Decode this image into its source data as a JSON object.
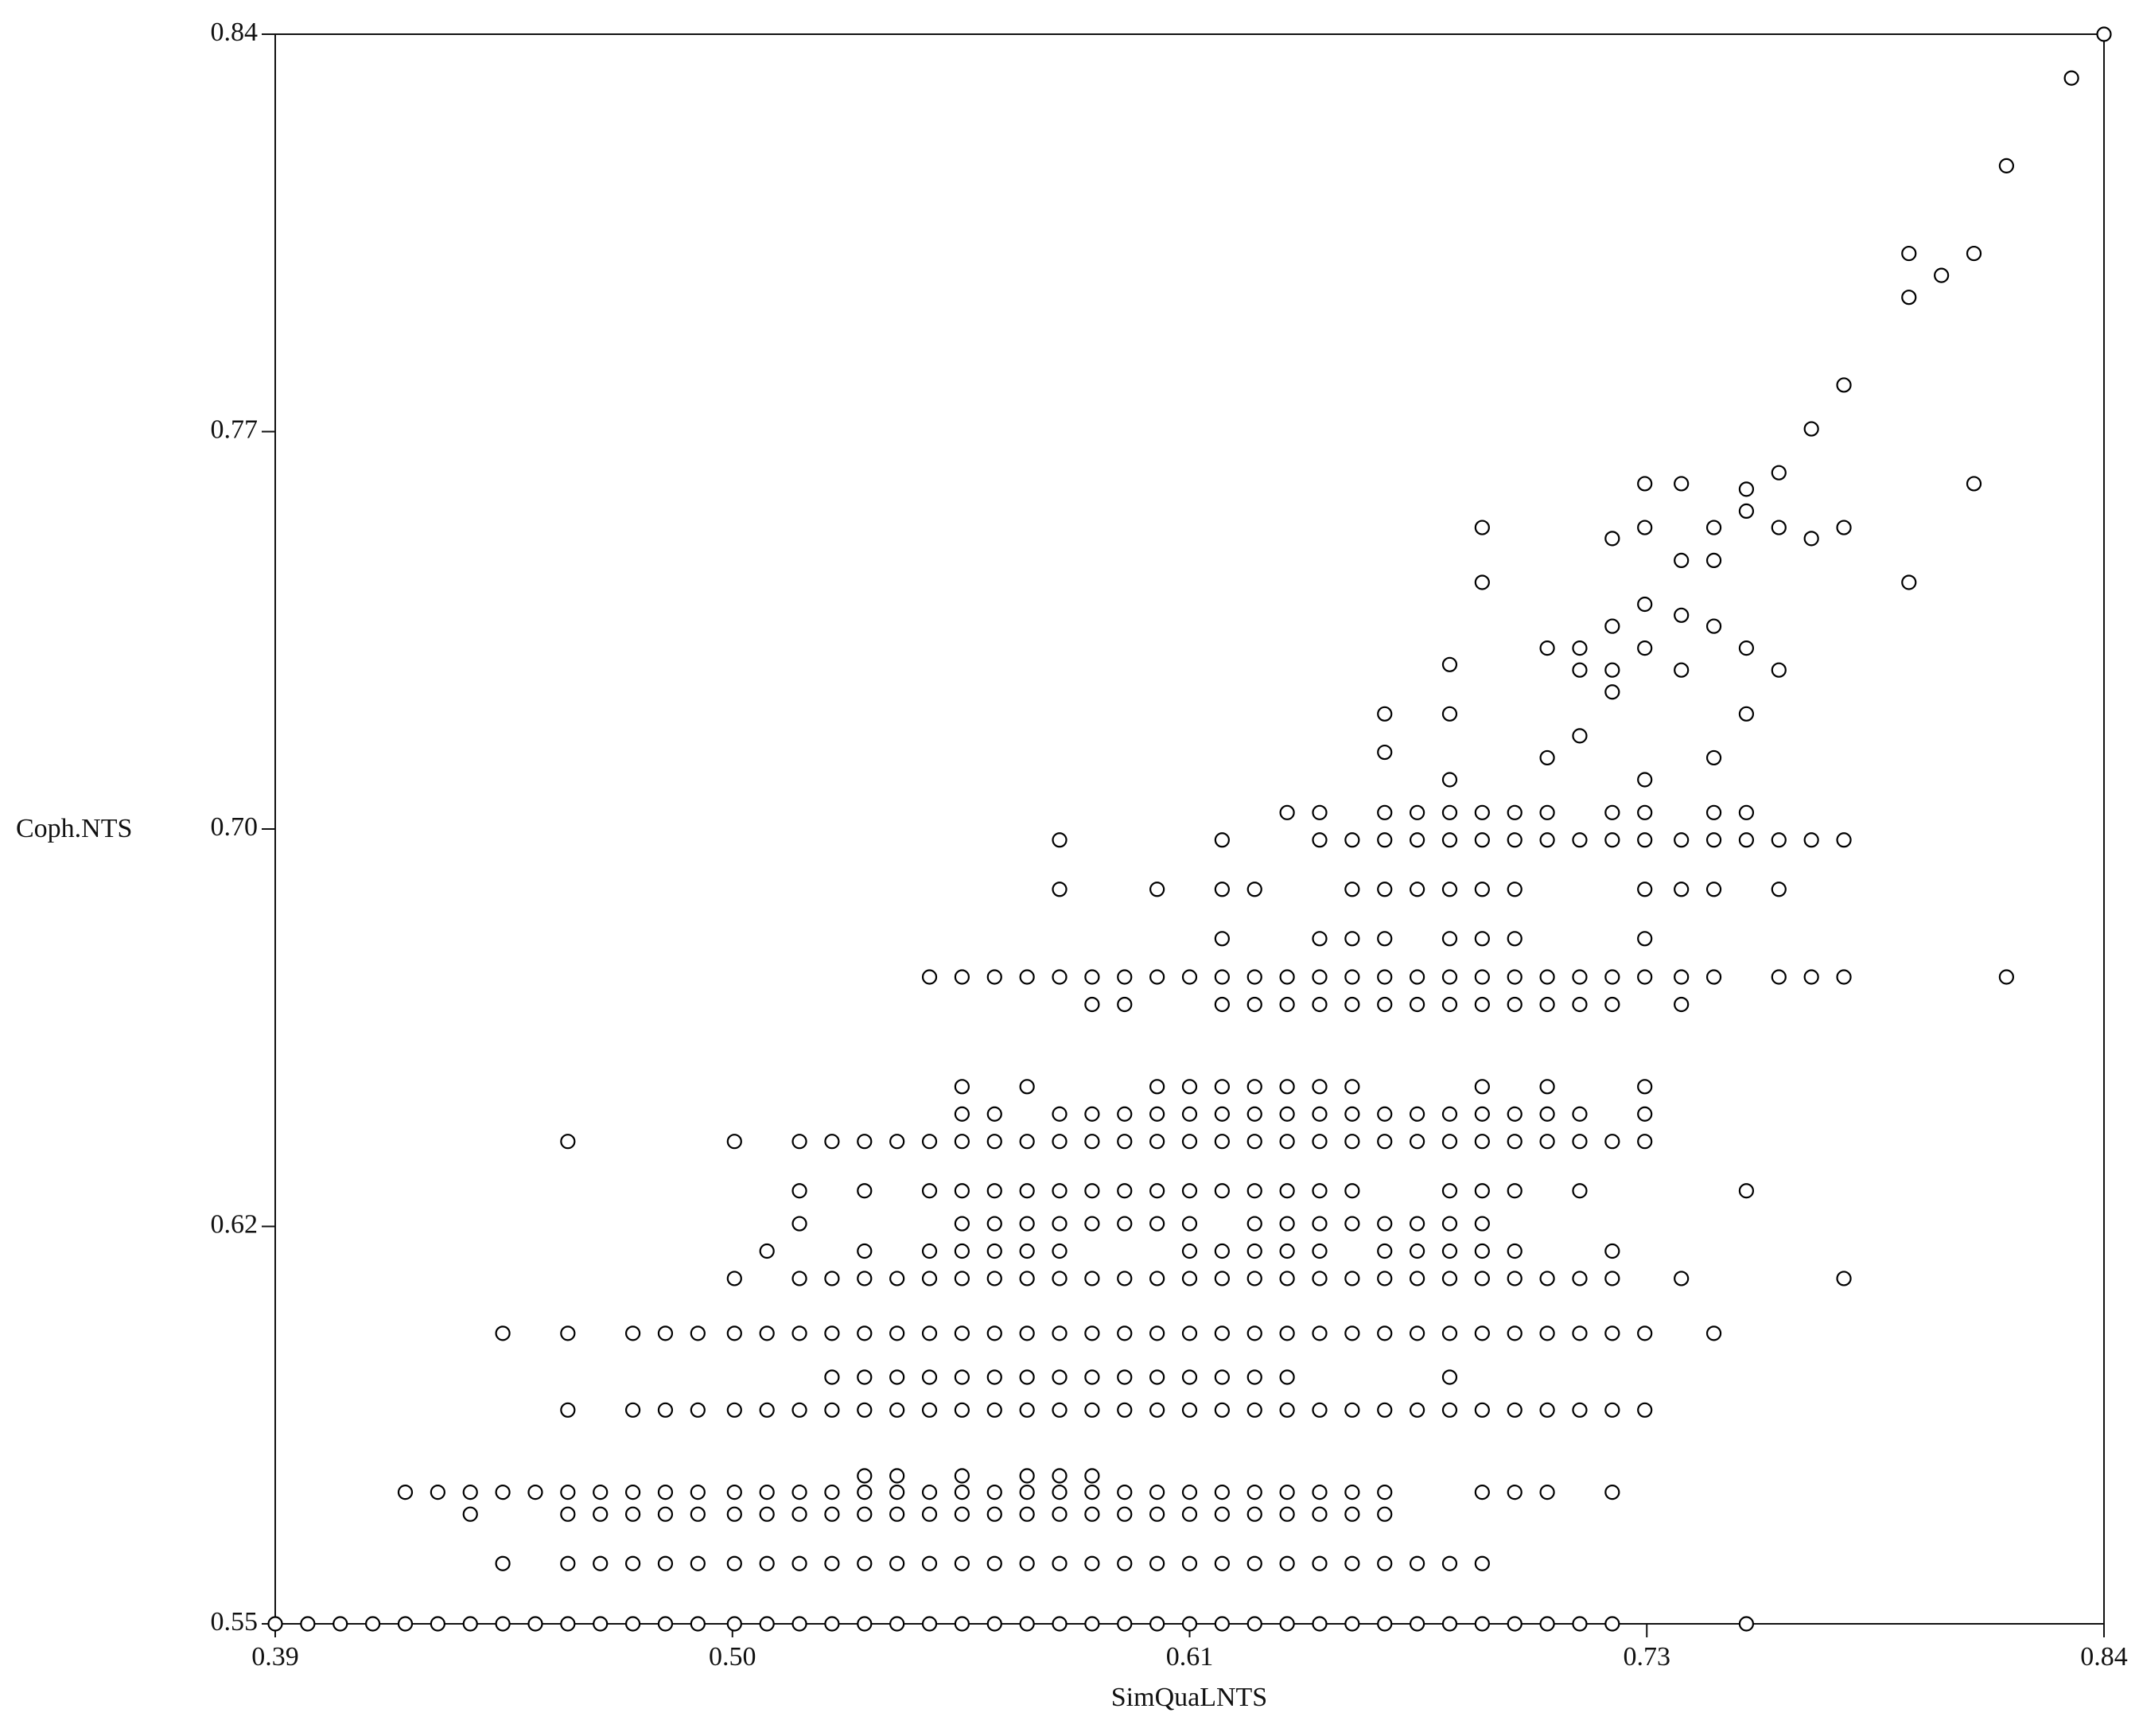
{
  "chart_data": {
    "type": "scatter",
    "x_label": "SimQuaLNTS",
    "y_label": "Coph.NTS",
    "color": "#000000",
    "xlim": [
      0.39,
      0.84
    ],
    "ylim": [
      0.55,
      0.84
    ],
    "xticks": [
      {
        "value": 0.39,
        "label": "0.39"
      },
      {
        "value": 0.5025,
        "label": "0.50"
      },
      {
        "value": 0.615,
        "label": "0.61"
      },
      {
        "value": 0.7275,
        "label": "0.73"
      },
      {
        "value": 0.84,
        "label": "0.84"
      }
    ],
    "yticks": [
      {
        "value": 0.55,
        "label": "0.55"
      },
      {
        "value": 0.6225,
        "label": "0.62"
      },
      {
        "value": 0.695,
        "label": "0.70"
      },
      {
        "value": 0.7675,
        "label": "0.77"
      },
      {
        "value": 0.84,
        "label": "0.84"
      }
    ],
    "x": [
      0.39,
      0.398,
      0.406,
      0.414,
      0.422,
      0.43,
      0.438,
      0.446,
      0.454,
      0.462,
      0.47,
      0.478,
      0.486,
      0.494,
      0.503,
      0.511,
      0.519,
      0.527,
      0.535,
      0.543,
      0.551,
      0.559,
      0.567,
      0.575,
      0.583,
      0.591,
      0.599,
      0.607,
      0.615,
      0.623,
      0.631,
      0.639,
      0.647,
      0.655,
      0.663,
      0.671,
      0.679,
      0.687,
      0.695,
      0.703,
      0.711,
      0.719,
      0.752,
      0.446,
      0.462,
      0.47,
      0.478,
      0.486,
      0.494,
      0.503,
      0.511,
      0.519,
      0.527,
      0.535,
      0.543,
      0.551,
      0.559,
      0.567,
      0.575,
      0.583,
      0.591,
      0.599,
      0.607,
      0.615,
      0.623,
      0.631,
      0.639,
      0.647,
      0.655,
      0.663,
      0.671,
      0.679,
      0.687,
      0.438,
      0.462,
      0.47,
      0.478,
      0.486,
      0.494,
      0.503,
      0.511,
      0.519,
      0.527,
      0.535,
      0.543,
      0.551,
      0.559,
      0.567,
      0.575,
      0.583,
      0.591,
      0.599,
      0.607,
      0.615,
      0.623,
      0.631,
      0.639,
      0.647,
      0.655,
      0.663,
      0.422,
      0.43,
      0.438,
      0.446,
      0.454,
      0.462,
      0.47,
      0.478,
      0.486,
      0.494,
      0.503,
      0.511,
      0.519,
      0.527,
      0.535,
      0.543,
      0.551,
      0.559,
      0.567,
      0.575,
      0.583,
      0.591,
      0.599,
      0.607,
      0.615,
      0.623,
      0.631,
      0.639,
      0.647,
      0.655,
      0.663,
      0.687,
      0.695,
      0.703,
      0.719,
      0.535,
      0.543,
      0.559,
      0.575,
      0.583,
      0.591,
      0.462,
      0.478,
      0.486,
      0.494,
      0.503,
      0.511,
      0.519,
      0.527,
      0.535,
      0.543,
      0.551,
      0.559,
      0.567,
      0.575,
      0.583,
      0.591,
      0.599,
      0.607,
      0.615,
      0.623,
      0.631,
      0.639,
      0.647,
      0.655,
      0.663,
      0.671,
      0.679,
      0.687,
      0.695,
      0.703,
      0.711,
      0.719,
      0.727,
      0.527,
      0.535,
      0.543,
      0.551,
      0.559,
      0.567,
      0.575,
      0.583,
      0.591,
      0.599,
      0.607,
      0.615,
      0.623,
      0.631,
      0.639,
      0.679,
      0.446,
      0.462,
      0.478,
      0.486,
      0.494,
      0.503,
      0.511,
      0.519,
      0.527,
      0.535,
      0.543,
      0.551,
      0.559,
      0.567,
      0.575,
      0.583,
      0.591,
      0.599,
      0.607,
      0.615,
      0.623,
      0.631,
      0.639,
      0.647,
      0.655,
      0.663,
      0.671,
      0.679,
      0.687,
      0.695,
      0.703,
      0.711,
      0.719,
      0.727,
      0.744,
      0.503,
      0.519,
      0.527,
      0.535,
      0.543,
      0.551,
      0.559,
      0.567,
      0.575,
      0.583,
      0.591,
      0.599,
      0.607,
      0.615,
      0.623,
      0.631,
      0.639,
      0.647,
      0.655,
      0.663,
      0.671,
      0.679,
      0.687,
      0.695,
      0.703,
      0.711,
      0.719,
      0.736,
      0.776,
      0.511,
      0.535,
      0.551,
      0.559,
      0.567,
      0.575,
      0.583,
      0.615,
      0.623,
      0.631,
      0.639,
      0.647,
      0.663,
      0.671,
      0.679,
      0.687,
      0.695,
      0.719,
      0.519,
      0.559,
      0.567,
      0.575,
      0.583,
      0.591,
      0.599,
      0.607,
      0.615,
      0.631,
      0.639,
      0.647,
      0.655,
      0.663,
      0.671,
      0.679,
      0.687,
      0.519,
      0.535,
      0.551,
      0.559,
      0.567,
      0.575,
      0.583,
      0.591,
      0.599,
      0.607,
      0.615,
      0.623,
      0.631,
      0.639,
      0.647,
      0.655,
      0.679,
      0.687,
      0.695,
      0.711,
      0.752,
      0.462,
      0.503,
      0.519,
      0.527,
      0.535,
      0.543,
      0.551,
      0.559,
      0.567,
      0.575,
      0.583,
      0.591,
      0.599,
      0.607,
      0.615,
      0.623,
      0.631,
      0.639,
      0.647,
      0.655,
      0.663,
      0.671,
      0.679,
      0.687,
      0.695,
      0.703,
      0.711,
      0.719,
      0.727,
      0.559,
      0.567,
      0.583,
      0.591,
      0.599,
      0.607,
      0.615,
      0.623,
      0.631,
      0.639,
      0.647,
      0.655,
      0.663,
      0.671,
      0.679,
      0.687,
      0.695,
      0.703,
      0.711,
      0.727,
      0.559,
      0.575,
      0.607,
      0.615,
      0.623,
      0.631,
      0.639,
      0.647,
      0.655,
      0.687,
      0.703,
      0.727,
      0.591,
      0.599,
      0.623,
      0.631,
      0.639,
      0.647,
      0.655,
      0.663,
      0.671,
      0.679,
      0.687,
      0.695,
      0.703,
      0.711,
      0.719,
      0.736,
      0.551,
      0.559,
      0.567,
      0.575,
      0.583,
      0.591,
      0.599,
      0.607,
      0.615,
      0.623,
      0.631,
      0.639,
      0.647,
      0.655,
      0.663,
      0.671,
      0.679,
      0.687,
      0.695,
      0.703,
      0.711,
      0.719,
      0.727,
      0.736,
      0.744,
      0.76,
      0.768,
      0.776,
      0.816,
      0.623,
      0.647,
      0.655,
      0.663,
      0.679,
      0.687,
      0.695,
      0.727,
      0.583,
      0.607,
      0.623,
      0.631,
      0.655,
      0.663,
      0.671,
      0.679,
      0.687,
      0.695,
      0.727,
      0.736,
      0.744,
      0.76,
      0.583,
      0.623,
      0.647,
      0.655,
      0.663,
      0.671,
      0.679,
      0.687,
      0.695,
      0.703,
      0.711,
      0.719,
      0.727,
      0.736,
      0.744,
      0.752,
      0.76,
      0.768,
      0.776,
      0.639,
      0.647,
      0.663,
      0.671,
      0.679,
      0.687,
      0.695,
      0.703,
      0.719,
      0.727,
      0.744,
      0.752,
      0.663,
      0.663,
      0.679,
      0.679,
      0.679,
      0.687,
      0.687,
      0.703,
      0.711,
      0.711,
      0.703,
      0.711,
      0.719,
      0.719,
      0.719,
      0.719,
      0.727,
      0.727,
      0.727,
      0.727,
      0.727,
      0.736,
      0.736,
      0.736,
      0.736,
      0.744,
      0.744,
      0.744,
      0.744,
      0.752,
      0.752,
      0.752,
      0.752,
      0.76,
      0.76,
      0.76,
      0.768,
      0.768,
      0.776,
      0.776,
      0.792,
      0.792,
      0.792,
      0.8,
      0.808,
      0.808,
      0.816,
      0.832,
      0.84
    ],
    "values": [
      0.55,
      0.55,
      0.55,
      0.55,
      0.55,
      0.55,
      0.55,
      0.55,
      0.55,
      0.55,
      0.55,
      0.55,
      0.55,
      0.55,
      0.55,
      0.55,
      0.55,
      0.55,
      0.55,
      0.55,
      0.55,
      0.55,
      0.55,
      0.55,
      0.55,
      0.55,
      0.55,
      0.55,
      0.55,
      0.55,
      0.55,
      0.55,
      0.55,
      0.55,
      0.55,
      0.55,
      0.55,
      0.55,
      0.55,
      0.55,
      0.55,
      0.55,
      0.55,
      0.561,
      0.561,
      0.561,
      0.561,
      0.561,
      0.561,
      0.561,
      0.561,
      0.561,
      0.561,
      0.561,
      0.561,
      0.561,
      0.561,
      0.561,
      0.561,
      0.561,
      0.561,
      0.561,
      0.561,
      0.561,
      0.561,
      0.561,
      0.561,
      0.561,
      0.561,
      0.561,
      0.561,
      0.561,
      0.561,
      0.57,
      0.57,
      0.57,
      0.57,
      0.57,
      0.57,
      0.57,
      0.57,
      0.57,
      0.57,
      0.57,
      0.57,
      0.57,
      0.57,
      0.57,
      0.57,
      0.57,
      0.57,
      0.57,
      0.57,
      0.57,
      0.57,
      0.57,
      0.57,
      0.57,
      0.57,
      0.57,
      0.574,
      0.574,
      0.574,
      0.574,
      0.574,
      0.574,
      0.574,
      0.574,
      0.574,
      0.574,
      0.574,
      0.574,
      0.574,
      0.574,
      0.574,
      0.574,
      0.574,
      0.574,
      0.574,
      0.574,
      0.574,
      0.574,
      0.574,
      0.574,
      0.574,
      0.574,
      0.574,
      0.574,
      0.574,
      0.574,
      0.574,
      0.574,
      0.574,
      0.574,
      0.574,
      0.577,
      0.577,
      0.577,
      0.577,
      0.577,
      0.577,
      0.589,
      0.589,
      0.589,
      0.589,
      0.589,
      0.589,
      0.589,
      0.589,
      0.589,
      0.589,
      0.589,
      0.589,
      0.589,
      0.589,
      0.589,
      0.589,
      0.589,
      0.589,
      0.589,
      0.589,
      0.589,
      0.589,
      0.589,
      0.589,
      0.589,
      0.589,
      0.589,
      0.589,
      0.589,
      0.589,
      0.589,
      0.589,
      0.589,
      0.595,
      0.595,
      0.595,
      0.595,
      0.595,
      0.595,
      0.595,
      0.595,
      0.595,
      0.595,
      0.595,
      0.595,
      0.595,
      0.595,
      0.595,
      0.595,
      0.603,
      0.603,
      0.603,
      0.603,
      0.603,
      0.603,
      0.603,
      0.603,
      0.603,
      0.603,
      0.603,
      0.603,
      0.603,
      0.603,
      0.603,
      0.603,
      0.603,
      0.603,
      0.603,
      0.603,
      0.603,
      0.603,
      0.603,
      0.603,
      0.603,
      0.603,
      0.603,
      0.603,
      0.603,
      0.603,
      0.603,
      0.603,
      0.603,
      0.603,
      0.603,
      0.613,
      0.613,
      0.613,
      0.613,
      0.613,
      0.613,
      0.613,
      0.613,
      0.613,
      0.613,
      0.613,
      0.613,
      0.613,
      0.613,
      0.613,
      0.613,
      0.613,
      0.613,
      0.613,
      0.613,
      0.613,
      0.613,
      0.613,
      0.613,
      0.613,
      0.613,
      0.613,
      0.613,
      0.613,
      0.618,
      0.618,
      0.618,
      0.618,
      0.618,
      0.618,
      0.618,
      0.618,
      0.618,
      0.618,
      0.618,
      0.618,
      0.618,
      0.618,
      0.618,
      0.618,
      0.618,
      0.618,
      0.623,
      0.623,
      0.623,
      0.623,
      0.623,
      0.623,
      0.623,
      0.623,
      0.623,
      0.623,
      0.623,
      0.623,
      0.623,
      0.623,
      0.623,
      0.623,
      0.623,
      0.629,
      0.629,
      0.629,
      0.629,
      0.629,
      0.629,
      0.629,
      0.629,
      0.629,
      0.629,
      0.629,
      0.629,
      0.629,
      0.629,
      0.629,
      0.629,
      0.629,
      0.629,
      0.629,
      0.629,
      0.629,
      0.638,
      0.638,
      0.638,
      0.638,
      0.638,
      0.638,
      0.638,
      0.638,
      0.638,
      0.638,
      0.638,
      0.638,
      0.638,
      0.638,
      0.638,
      0.638,
      0.638,
      0.638,
      0.638,
      0.638,
      0.638,
      0.638,
      0.638,
      0.638,
      0.638,
      0.638,
      0.638,
      0.638,
      0.638,
      0.643,
      0.643,
      0.643,
      0.643,
      0.643,
      0.643,
      0.643,
      0.643,
      0.643,
      0.643,
      0.643,
      0.643,
      0.643,
      0.643,
      0.643,
      0.643,
      0.643,
      0.643,
      0.643,
      0.643,
      0.648,
      0.648,
      0.648,
      0.648,
      0.648,
      0.648,
      0.648,
      0.648,
      0.648,
      0.648,
      0.648,
      0.648,
      0.663,
      0.663,
      0.663,
      0.663,
      0.663,
      0.663,
      0.663,
      0.663,
      0.663,
      0.663,
      0.663,
      0.663,
      0.663,
      0.663,
      0.663,
      0.663,
      0.668,
      0.668,
      0.668,
      0.668,
      0.668,
      0.668,
      0.668,
      0.668,
      0.668,
      0.668,
      0.668,
      0.668,
      0.668,
      0.668,
      0.668,
      0.668,
      0.668,
      0.668,
      0.668,
      0.668,
      0.668,
      0.668,
      0.668,
      0.668,
      0.668,
      0.668,
      0.668,
      0.668,
      0.668,
      0.675,
      0.675,
      0.675,
      0.675,
      0.675,
      0.675,
      0.675,
      0.675,
      0.684,
      0.684,
      0.684,
      0.684,
      0.684,
      0.684,
      0.684,
      0.684,
      0.684,
      0.684,
      0.684,
      0.684,
      0.684,
      0.684,
      0.693,
      0.693,
      0.693,
      0.693,
      0.693,
      0.693,
      0.693,
      0.693,
      0.693,
      0.693,
      0.693,
      0.693,
      0.693,
      0.693,
      0.693,
      0.693,
      0.693,
      0.693,
      0.693,
      0.698,
      0.698,
      0.698,
      0.698,
      0.698,
      0.698,
      0.698,
      0.698,
      0.698,
      0.698,
      0.698,
      0.698,
      0.709,
      0.716,
      0.716,
      0.704,
      0.725,
      0.74,
      0.75,
      0.728,
      0.728,
      0.724,
      0.708,
      0.712,
      0.748,
      0.732,
      0.724,
      0.72,
      0.758,
      0.75,
      0.736,
      0.728,
      0.704,
      0.758,
      0.744,
      0.734,
      0.724,
      0.75,
      0.744,
      0.732,
      0.708,
      0.757,
      0.753,
      0.728,
      0.716,
      0.76,
      0.75,
      0.724,
      0.768,
      0.748,
      0.776,
      0.75,
      0.8,
      0.792,
      0.74,
      0.796,
      0.8,
      0.758,
      0.816,
      0.832,
      0.84
    ]
  }
}
